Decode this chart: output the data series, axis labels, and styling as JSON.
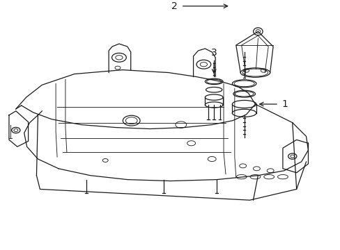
{
  "background_color": "#ffffff",
  "line_color": "#1a1a1a",
  "lw": 0.9,
  "fig_width": 4.89,
  "fig_height": 3.6,
  "dpi": 100
}
